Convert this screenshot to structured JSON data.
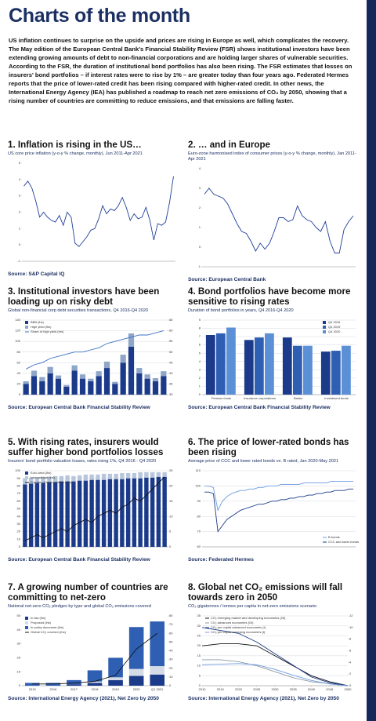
{
  "title": "Charts of the month",
  "intro": "US inflation continues to surprise on the upside and prices are rising in Europe as well, which complicates the recovery. The May edition of the European Central Bank's Financial Stability Review (FSR) shows institutional investors have been extending growing amounts of debt to non-financial corporations and are holding larger shares of vulnerable securities. According to the FSR, the duration of institutional bond portfolios has also been rising. The FSR estimates that losses on insurers' bond portfolios – if interest rates were to rise by 1% – are greater today than four years ago. Federated Hermes reports that the price of lower-rated credit has been rising compared with higher-rated credit. In other news, the International Energy Agency (IEA) has published a roadmap to reach net zero emissions of CO₂ by 2050, showing that a rising number of countries are committing to reduce emissions, and that emissions are falling faster.",
  "chart_data": [
    {
      "type": "line",
      "title": "1. Inflation is rising in the US…",
      "subtitle": "US core price inflation (y-o-y % change, monthly), Jun 2011-Apr 2021",
      "source": "Source: S&P Capital IQ",
      "ylim": [
        -1,
        5
      ],
      "yticks": [
        -1,
        0,
        1,
        2,
        3,
        4,
        5
      ],
      "grid": false,
      "series": [
        {
          "name": "US core CPI",
          "color": "#1f3f99",
          "values": [
            3.6,
            3.9,
            3.5,
            2.7,
            1.7,
            2.0,
            1.7,
            1.5,
            1.4,
            1.8,
            1.2,
            2.0,
            1.7,
            0.1,
            -0.1,
            0.2,
            0.5,
            0.9,
            1.0,
            1.6,
            2.4,
            1.9,
            2.2,
            2.1,
            2.4,
            2.9,
            2.3,
            1.5,
            1.9,
            1.6,
            1.7,
            2.3,
            1.5,
            0.3,
            1.3,
            1.2,
            1.4,
            2.6,
            4.2
          ]
        }
      ]
    },
    {
      "type": "line",
      "title": "2. … and in Europe",
      "subtitle": "Euro-zone harmonised index of consumer prices (y-o-y % change, monthly), Jan 2011-Apr 2021",
      "source": "Source: European Central Bank",
      "ylim": [
        -1,
        4
      ],
      "yticks": [
        -1,
        0,
        1,
        2,
        3,
        4
      ],
      "grid": false,
      "series": [
        {
          "name": "Euro-zone HICP",
          "color": "#1f3f99",
          "values": [
            2.7,
            3.0,
            2.7,
            2.6,
            2.5,
            2.2,
            1.7,
            1.2,
            0.8,
            0.7,
            0.3,
            -0.2,
            0.2,
            -0.1,
            0.2,
            0.8,
            1.5,
            1.5,
            1.3,
            1.4,
            2.1,
            1.6,
            1.4,
            1.3,
            1.0,
            0.8,
            1.3,
            0.3,
            -0.3,
            -0.3,
            0.9,
            1.3,
            1.6
          ]
        }
      ]
    },
    {
      "type": "bar",
      "stacked": true,
      "title": "3. Institutional investors have been loading up on risky debt",
      "subtitle": "Global non-financial corp debt securities transactions, Q4 2016-Q4 2020",
      "source": "Source: European Central Bank Financial Stability Review",
      "ylim": [
        0,
        140
      ],
      "yticks": [
        0,
        20,
        40,
        60,
        80,
        100,
        120,
        140
      ],
      "y2lim": [
        30,
        65
      ],
      "y2ticks": [
        30,
        35,
        40,
        45,
        50,
        55,
        60,
        65
      ],
      "grid": true,
      "legend": "upper left",
      "series": [
        {
          "name": "BBB (lhs)",
          "color": "#1b3a8a",
          "values": [
            20,
            35,
            25,
            40,
            30,
            15,
            45,
            30,
            25,
            35,
            50,
            20,
            60,
            90,
            40,
            30,
            25,
            35
          ]
        },
        {
          "name": "High yield (lhs)",
          "color": "#8fa6c8",
          "values": [
            5,
            10,
            8,
            12,
            6,
            3,
            10,
            8,
            5,
            9,
            12,
            4,
            15,
            25,
            10,
            8,
            6,
            9
          ]
        },
        {
          "name": "Share of high yield (rhs)",
          "type": "line",
          "axis": "y2",
          "color": "#3a6fc4",
          "values": [
            42,
            44,
            45,
            47,
            48,
            49,
            50,
            50,
            51,
            52,
            54,
            55,
            56,
            57,
            58,
            58,
            59,
            60
          ]
        }
      ]
    },
    {
      "type": "bar",
      "title": "4. Bond portfolios have become more sensitive to rising rates",
      "subtitle": "Duration of bond portfolios in years, Q4 2016-Q4 2020",
      "source": "Source: European Central Bank Financial Stability Review",
      "ylim": [
        0,
        9
      ],
      "yticks": [
        0,
        1,
        2,
        3,
        4,
        5,
        6,
        7,
        8,
        9
      ],
      "grid": true,
      "legend": "upper right",
      "categories": [
        "Pension funds",
        "Insurance corporations",
        "Banks",
        "Investment funds"
      ],
      "series": [
        {
          "name": "Q4 2016",
          "color": "#1b3a8a",
          "values": [
            7.2,
            6.6,
            6.9,
            5.2
          ]
        },
        {
          "name": "Q4 2019",
          "color": "#2f5fb3",
          "values": [
            7.4,
            6.9,
            5.9,
            5.3
          ]
        },
        {
          "name": "Q4 2020",
          "color": "#5b8fd6",
          "values": [
            8.1,
            7.4,
            5.9,
            5.9
          ]
        }
      ]
    },
    {
      "type": "bar",
      "stacked": true,
      "title": "5. With rising rates, insurers would suffer higher bond portfolios losses",
      "subtitle": "Insurers' bond portfolio valuation losses, rates rising 1%, Q4 2016 - Q4 2020",
      "source": "Source: European Central Bank Financial Stability Review",
      "ylim": [
        0,
        100
      ],
      "yticks": [
        0,
        10,
        20,
        30,
        40,
        50,
        60,
        70,
        80,
        90,
        100
      ],
      "y2lim": [
        0,
        25
      ],
      "y2ticks": [
        0,
        5,
        10,
        15,
        20,
        25
      ],
      "grid": true,
      "legend": "upper left",
      "series": [
        {
          "name": "Euro area (lhs)",
          "color": "#1b3a8a",
          "values": [
            82,
            83,
            84,
            84,
            85,
            85,
            86,
            86,
            86,
            87,
            87,
            88,
            88,
            88,
            89,
            89,
            89,
            90,
            90,
            90,
            91,
            91,
            92,
            92
          ]
        },
        {
          "name": "International (lhs)",
          "color": "#b8c6dc",
          "values": [
            8,
            8,
            7,
            8,
            7,
            8,
            7,
            8,
            7,
            7,
            8,
            7,
            7,
            8,
            7,
            7,
            8,
            7,
            7,
            8,
            7,
            7,
            6,
            6
          ]
        },
        {
          "name": "Fraction of total portfolio (rhs)",
          "type": "line",
          "axis": "y2",
          "color": "#111111",
          "values": [
            2,
            3,
            4,
            3,
            4,
            5,
            6,
            5,
            7,
            8,
            9,
            8,
            10,
            11,
            12,
            11,
            13,
            14,
            16,
            15,
            17,
            19,
            21,
            23
          ]
        }
      ]
    },
    {
      "type": "line",
      "title": "6. The price of lower-rated bonds has been rising",
      "subtitle": "Average price of CCC and lower rated bonds vs. B rated, Jan 2020-May 2021",
      "source": "Source: Federated Hermes",
      "ylim": [
        60,
        110
      ],
      "yticks": [
        60,
        70,
        80,
        90,
        100,
        110
      ],
      "grid": true,
      "legend": "lower right",
      "series": [
        {
          "name": "B bonds",
          "color": "#6c9bdc",
          "values": [
            100,
            100,
            99,
            84,
            90,
            93,
            95,
            96,
            97,
            97,
            98,
            98,
            99,
            99,
            100,
            100,
            100,
            101,
            101,
            101,
            101,
            101,
            102,
            102,
            102,
            102,
            102,
            102,
            103,
            103,
            103,
            103,
            103,
            103
          ]
        },
        {
          "name": "CCC and lower bonds",
          "color": "#1b3a8a",
          "values": [
            96,
            96,
            95,
            70,
            74,
            78,
            80,
            82,
            84,
            85,
            86,
            87,
            88,
            88,
            89,
            90,
            90,
            91,
            91,
            92,
            92,
            93,
            93,
            94,
            94,
            95,
            95,
            96,
            96,
            97,
            97,
            97,
            98,
            98
          ]
        }
      ]
    },
    {
      "type": "bar",
      "stacked": true,
      "title": "7. A growing number of countries are committing to net-zero",
      "subtitle": "National net-zero CO₂ pledges by type and global CO₂ emissions covered",
      "source": "Source: International Energy Agency (2021), Net Zero by 2050",
      "ylim": [
        0,
        50
      ],
      "yticks": [
        0,
        10,
        20,
        30,
        40,
        50
      ],
      "y2lim": [
        0,
        80
      ],
      "y2ticks": [
        0,
        10,
        20,
        30,
        40,
        50,
        60,
        70,
        80
      ],
      "grid": false,
      "legend": "upper left",
      "categories": [
        "2015",
        "2016",
        "2017",
        "2018",
        "2019",
        "2020",
        "Q1 2021"
      ],
      "series": [
        {
          "name": "In law (lhs)",
          "color": "#1b3a8a",
          "values": [
            0,
            0,
            1,
            2,
            4,
            7,
            8
          ]
        },
        {
          "name": "Proposed (lhs)",
          "color": "#d5dbe6",
          "values": [
            0,
            0,
            0,
            1,
            2,
            5,
            6
          ]
        },
        {
          "name": "In policy document (lhs)",
          "color": "#2f5fb3",
          "values": [
            2,
            2,
            3,
            8,
            14,
            30,
            32
          ]
        },
        {
          "name": "Global CO₂ covered (rhs)",
          "type": "line",
          "axis": "y2",
          "color": "#111111",
          "values": [
            2,
            2,
            3,
            5,
            12,
            42,
            60
          ]
        }
      ]
    },
    {
      "type": "line",
      "title": "8. Global net CO₂ emissions will fall towards zero in 2050",
      "subtitle": "CO₂ gigatonnes / tonnes per capita in net-zero emissions scenario",
      "source": "Source: International Energy Agency (2021), Net Zero by 2050",
      "x": [
        2010,
        2015,
        2020,
        2025,
        2030,
        2035,
        2040,
        2045,
        2050
      ],
      "xlim": [
        2010,
        2050
      ],
      "xticks": [
        2010,
        2015,
        2020,
        2025,
        2030,
        2035,
        2040,
        2045,
        2050
      ],
      "ylim": [
        0,
        35
      ],
      "yticks": [
        0,
        5,
        10,
        15,
        20,
        25,
        30,
        35
      ],
      "y2lim": [
        0,
        12
      ],
      "y2ticks": [
        0,
        2,
        4,
        6,
        8,
        10,
        12
      ],
      "grid": true,
      "legend": "upper left",
      "series": [
        {
          "name": "CO₂ emerging market and developing economies (Gt)",
          "color": "#111111",
          "values": [
            20,
            21,
            21,
            20,
            15,
            10,
            5,
            2,
            0
          ]
        },
        {
          "name": "CO₂ advanced economies (Gt)",
          "color": "#8a96a8",
          "values": [
            13,
            13,
            12,
            10,
            7,
            4,
            2,
            1,
            0
          ]
        },
        {
          "name": "CO₂ per capita advanced economies (t)",
          "axis": "y2",
          "color": "#1b3a8a",
          "values": [
            10,
            9.5,
            9,
            7.5,
            5.5,
            3.5,
            1.5,
            0.5,
            0
          ]
        },
        {
          "name": "CO₂ per capita emerging economies (t)",
          "axis": "y2",
          "color": "#6c9bdc",
          "values": [
            3.6,
            3.7,
            3.8,
            3.6,
            2.8,
            1.8,
            0.9,
            0.3,
            0
          ]
        }
      ]
    }
  ]
}
